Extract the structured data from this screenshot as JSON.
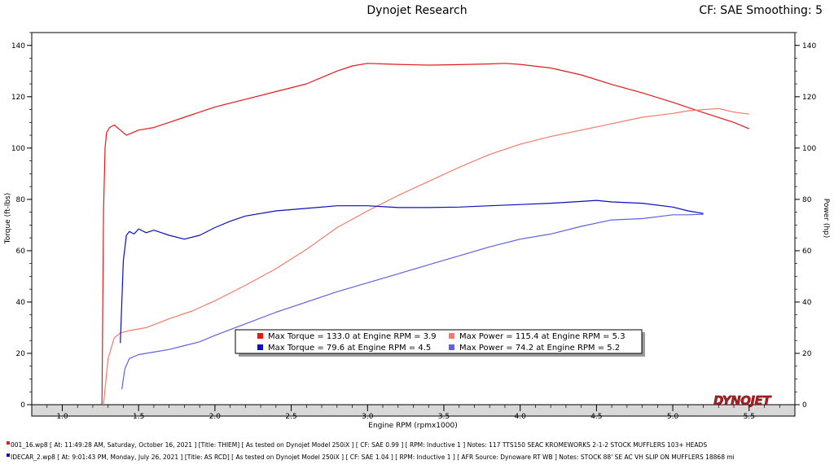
{
  "header": {
    "title": "Dynojet Research",
    "cf_label": "CF: SAE Smoothing: 5"
  },
  "logo_text": "DYNOJET",
  "chart_data": {
    "type": "line",
    "xlabel": "Engine RPM (rpmx1000)",
    "ylabel_left": "Torque (ft-lbs)",
    "ylabel_right": "Power (hp)",
    "xlim": [
      0.8,
      5.8
    ],
    "ylim": [
      0,
      145
    ],
    "x_ticks": [
      "1.0",
      "1.5",
      "2.0",
      "2.5",
      "3.0",
      "3.5",
      "4.0",
      "4.5",
      "5.0",
      "5.5"
    ],
    "y_ticks": [
      "0",
      "20",
      "40",
      "60",
      "80",
      "100",
      "120",
      "140"
    ],
    "grid": false,
    "colors": {
      "torque1": "#e31a1c",
      "power1": "#f47a6b",
      "torque2": "#0a10b5",
      "power2": "#5c63e0"
    },
    "series": [
      {
        "key": "torque1",
        "x": [
          1.26,
          1.27,
          1.28,
          1.29,
          1.31,
          1.34,
          1.38,
          1.42,
          1.46,
          1.5,
          1.6,
          1.7,
          1.8,
          1.9,
          2.0,
          2.2,
          2.4,
          2.6,
          2.8,
          2.9,
          3.0,
          3.1,
          3.2,
          3.4,
          3.6,
          3.8,
          3.9,
          4.0,
          4.2,
          4.4,
          4.6,
          4.8,
          5.0,
          5.2,
          5.4,
          5.5
        ],
        "values": [
          0,
          75,
          100,
          106,
          108,
          109,
          107,
          105,
          106,
          107,
          108,
          110,
          112,
          114,
          116,
          119,
          122,
          125,
          130,
          132,
          133,
          132.8,
          132.6,
          132.3,
          132.5,
          132.8,
          133,
          132.6,
          131.2,
          128.5,
          124.8,
          121.5,
          117.8,
          113.8,
          110,
          107.5
        ]
      },
      {
        "key": "power1",
        "x": [
          1.27,
          1.3,
          1.34,
          1.38,
          1.45,
          1.55,
          1.7,
          1.85,
          2.0,
          2.2,
          2.4,
          2.6,
          2.8,
          3.0,
          3.2,
          3.4,
          3.6,
          3.8,
          4.0,
          4.2,
          4.4,
          4.6,
          4.8,
          5.0,
          5.1,
          5.2,
          5.3,
          5.4,
          5.5
        ],
        "values": [
          0,
          18,
          26,
          28,
          29,
          30,
          33.5,
          36.5,
          40.5,
          46.5,
          53,
          60.5,
          69,
          75.5,
          81.5,
          87,
          92.5,
          97.5,
          101.5,
          104.5,
          107,
          109.5,
          112,
          113.5,
          114.5,
          115,
          115.4,
          114,
          113.2
        ]
      },
      {
        "key": "torque2",
        "x": [
          1.38,
          1.39,
          1.4,
          1.42,
          1.44,
          1.47,
          1.5,
          1.55,
          1.6,
          1.65,
          1.7,
          1.8,
          1.9,
          2.0,
          2.1,
          2.2,
          2.4,
          2.6,
          2.8,
          3.0,
          3.2,
          3.4,
          3.6,
          3.8,
          4.0,
          4.2,
          4.4,
          4.5,
          4.6,
          4.8,
          5.0,
          5.1,
          5.2
        ],
        "values": [
          24,
          40,
          56,
          66,
          67.5,
          66.5,
          68.5,
          67,
          68,
          67,
          66,
          64.5,
          66,
          69,
          71.5,
          73.5,
          75.5,
          76.5,
          77.5,
          77.5,
          76.8,
          76.8,
          77,
          77.5,
          78,
          78.5,
          79.2,
          79.6,
          79,
          78.5,
          77,
          75.5,
          74.5
        ]
      },
      {
        "key": "power2",
        "x": [
          1.39,
          1.41,
          1.44,
          1.5,
          1.6,
          1.7,
          1.8,
          1.9,
          2.0,
          2.2,
          2.4,
          2.6,
          2.8,
          3.0,
          3.2,
          3.4,
          3.6,
          3.8,
          4.0,
          4.2,
          4.4,
          4.6,
          4.8,
          5.0,
          5.1,
          5.2
        ],
        "values": [
          6,
          14,
          18,
          19.5,
          20.5,
          21.5,
          23,
          24.5,
          27,
          31.5,
          36,
          40,
          44,
          47.5,
          51,
          54.5,
          58,
          61.5,
          64.5,
          66.5,
          69.5,
          72,
          72.5,
          74,
          74,
          74.2
        ]
      }
    ],
    "legend": {
      "placement": "bottom-center",
      "entries": [
        {
          "key": "torque1",
          "text": "Max Torque = 133.0 at Engine RPM = 3.9"
        },
        {
          "key": "power1",
          "text": "Max Power = 115.4 at Engine RPM = 5.3"
        },
        {
          "key": "torque2",
          "text": "Max Torque = 79.6 at Engine RPM = 4.5"
        },
        {
          "key": "power2",
          "text": "Max Power = 74.2 at Engine RPM = 5.2"
        }
      ]
    }
  },
  "runs": [
    {
      "color": "#e31a1c",
      "text": "001_16.wp8 [  At:  11:49:28 AM, Saturday, October 16, 2021  ] [Title:  THIEM]   [  As tested on Dynojet  Model 250iX  ] [  CF:  SAE 0.99  ] [  RPM:  Inductive 1  ]  Notes:  117 TTS150 SEAC  KROMEWORKS 2-1-2  STOCK  MUFFLERS 103+  HEADS"
    },
    {
      "color": "#0a10b5",
      "text": "IDECAR_2.wp8  [  At:  9:01:43 PM, Monday, July 26, 2021  ] [Title:  AS RCD]   [  As tested on Dynojet  Model 250iX  ] [  CF:  SAE 1.04  ] [  RPM:  Inductive 1  ] [  AFR Source:  Dynoware RT WB  ] Notes:  STOCK 88'  SE AC  VH SLIP ON MUFFLERS 18868 mi"
    }
  ]
}
